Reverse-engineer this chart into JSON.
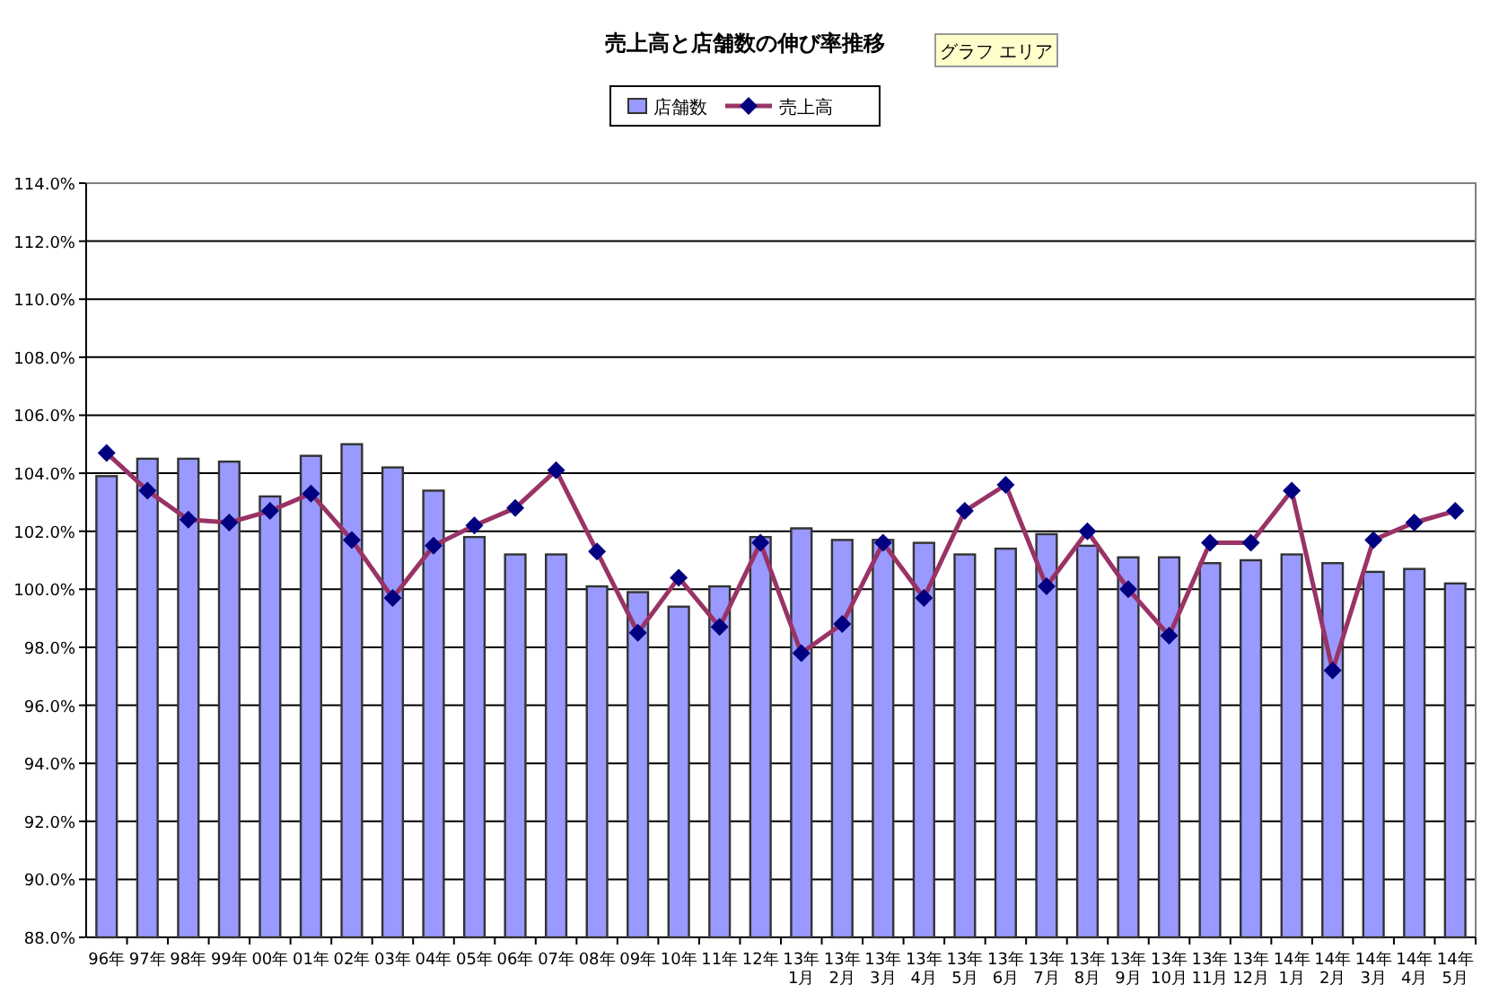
{
  "chart_data": {
    "type": "bar",
    "title": "売上高と店舗数の伸び率推移",
    "annotations": [
      "グラフ エリア"
    ],
    "categories": [
      "96年",
      "97年",
      "98年",
      "99年",
      "00年",
      "01年",
      "02年",
      "03年",
      "04年",
      "05年",
      "06年",
      "07年",
      "08年",
      "09年",
      "10年",
      "11年",
      "12年",
      "13年\n1月",
      "13年\n2月",
      "13年\n3月",
      "13年\n4月",
      "13年\n5月",
      "13年\n6月",
      "13年\n7月",
      "13年\n8月",
      "13年\n9月",
      "13年\n10月",
      "13年\n11月",
      "13年\n12月",
      "14年\n1月",
      "14年\n2月",
      "14年\n3月",
      "14年\n4月",
      "14年\n5月"
    ],
    "series": [
      {
        "name": "店舗数",
        "color": "#9999ff",
        "values": [
          103.9,
          104.5,
          104.5,
          104.4,
          103.2,
          104.6,
          105.0,
          104.2,
          103.4,
          101.8,
          101.2,
          101.2,
          100.1,
          99.9,
          99.4,
          100.1,
          101.8,
          102.1,
          101.7,
          101.7,
          101.6,
          101.2,
          101.4,
          101.9,
          101.5,
          101.1,
          101.1,
          100.9,
          101.0,
          101.2,
          100.9,
          100.6,
          100.7,
          100.2
        ]
      },
      {
        "name": "売上高",
        "type": "line",
        "color": "#993366",
        "marker": "diamond",
        "values": [
          104.7,
          103.4,
          102.4,
          102.3,
          102.7,
          103.3,
          101.7,
          99.7,
          101.5,
          102.2,
          102.8,
          104.1,
          101.3,
          98.5,
          100.4,
          98.7,
          101.6,
          97.8,
          98.8,
          101.6,
          99.7,
          102.7,
          103.6,
          100.1,
          102.0,
          100.0,
          98.4,
          101.6,
          101.6,
          103.4,
          97.2,
          101.7,
          102.3,
          102.7
        ]
      }
    ],
    "ylim": [
      88,
      114
    ],
    "yticks": [
      {
        "value": 88,
        "label": "88.0%"
      },
      {
        "value": 90,
        "label": "90.0%"
      },
      {
        "value": 92,
        "label": "92.0%"
      },
      {
        "value": 94,
        "label": "94.0%"
      },
      {
        "value": 96,
        "label": "96.0%"
      },
      {
        "value": 98,
        "label": "98.0%"
      },
      {
        "value": 100,
        "label": "100.0%"
      },
      {
        "value": 102,
        "label": "102.0%"
      },
      {
        "value": 104,
        "label": "104.0%"
      },
      {
        "value": 106,
        "label": "106.0%"
      },
      {
        "value": 108,
        "label": "108.0%"
      },
      {
        "value": 110,
        "label": "110.0%"
      },
      {
        "value": 112,
        "label": "112.0%"
      },
      {
        "value": 114,
        "label": "114.0%"
      }
    ],
    "grid": "y",
    "legend": "top"
  }
}
